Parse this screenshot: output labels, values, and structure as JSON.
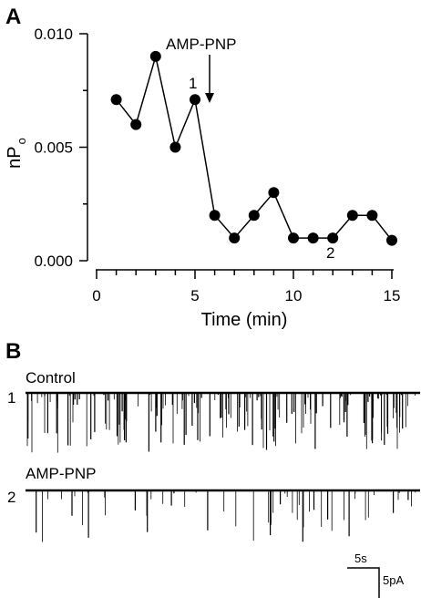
{
  "panel_a_letter": "A",
  "panel_b_letter": "B",
  "chart_data": {
    "type": "scatter",
    "xlabel": "Time (min)",
    "ylabel": "nP",
    "ylabel_subscript": "o",
    "xlim": [
      0,
      15.5
    ],
    "ylim": [
      0,
      0.0104
    ],
    "x_ticks": [
      0,
      5,
      10,
      15
    ],
    "x_tick_labels": [
      "0",
      "5",
      "10",
      "15"
    ],
    "y_ticks": [
      0,
      0.005,
      0.01
    ],
    "y_tick_labels": [
      "0.000",
      "0.005",
      "0.010"
    ],
    "x": [
      1,
      2,
      3,
      4,
      5,
      6,
      7,
      8,
      9,
      10,
      11,
      12,
      13,
      14,
      15
    ],
    "values": [
      0.0071,
      0.006,
      0.009,
      0.005,
      0.0071,
      0.002,
      0.001,
      0.002,
      0.003,
      0.001,
      0.001,
      0.001,
      0.002,
      0.002,
      0.0009
    ],
    "grid": false,
    "annotations": [
      {
        "text": "AMP-PNP",
        "arrow_at_x": 5.7
      },
      {
        "text": "1",
        "at_x": 5
      },
      {
        "text": "2",
        "at_x": 12
      }
    ]
  },
  "traces": [
    {
      "number": "1",
      "label": "Control"
    },
    {
      "number": "2",
      "label": "AMP-PNP"
    }
  ],
  "scale_bar": {
    "time": "5s",
    "current": "5pA"
  }
}
